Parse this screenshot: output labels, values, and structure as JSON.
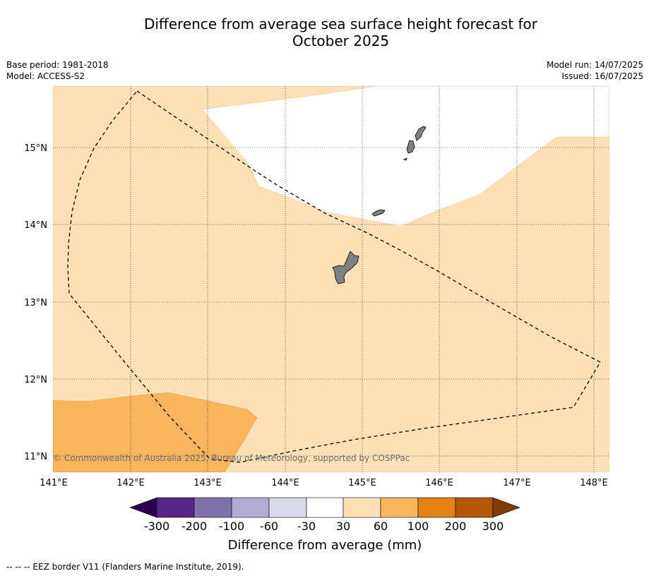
{
  "title": {
    "line1": "Difference from average sea surface height forecast for",
    "line2": "October 2025"
  },
  "info": {
    "base_period": "Base period: 1981-2018",
    "model": "Model: ACCESS-S2",
    "model_run": "Model run: 14/07/2025",
    "issued": "Issued: 16/07/2025"
  },
  "map": {
    "lon_labels": [
      "141°E",
      "142°E",
      "143°E",
      "144°E",
      "145°E",
      "146°E",
      "147°E",
      "148°E"
    ],
    "lat_labels": [
      "15°N",
      "14°N",
      "13°N",
      "12°N",
      "11°N"
    ],
    "lon_range": [
      141,
      148.2
    ],
    "lat_range": [
      10.8,
      15.8
    ],
    "copyright": "© Commonwealth of Australia 2025, Bureau of Meteorology, supported by COSPPac",
    "colors": {
      "land": "#808080",
      "band_30_60": "#fde0b6",
      "band_60_100": "#f9b45e",
      "band_neg30_30": "#ffffff"
    }
  },
  "colorbar": {
    "title": "Difference from average (mm)",
    "tick_labels": [
      "-300",
      "-200",
      "-100",
      "-60",
      "-30",
      "30",
      "60",
      "100",
      "200",
      "300"
    ],
    "colors": [
      "#2d004b",
      "#542788",
      "#8073ac",
      "#b2abd2",
      "#d8daeb",
      "#ffffff",
      "#fde0b6",
      "#f9b45e",
      "#e08214",
      "#b35806",
      "#7f3b08"
    ]
  },
  "footnote": "--  --  -- EEZ border V11 (Flanders Marine Institute, 2019)."
}
